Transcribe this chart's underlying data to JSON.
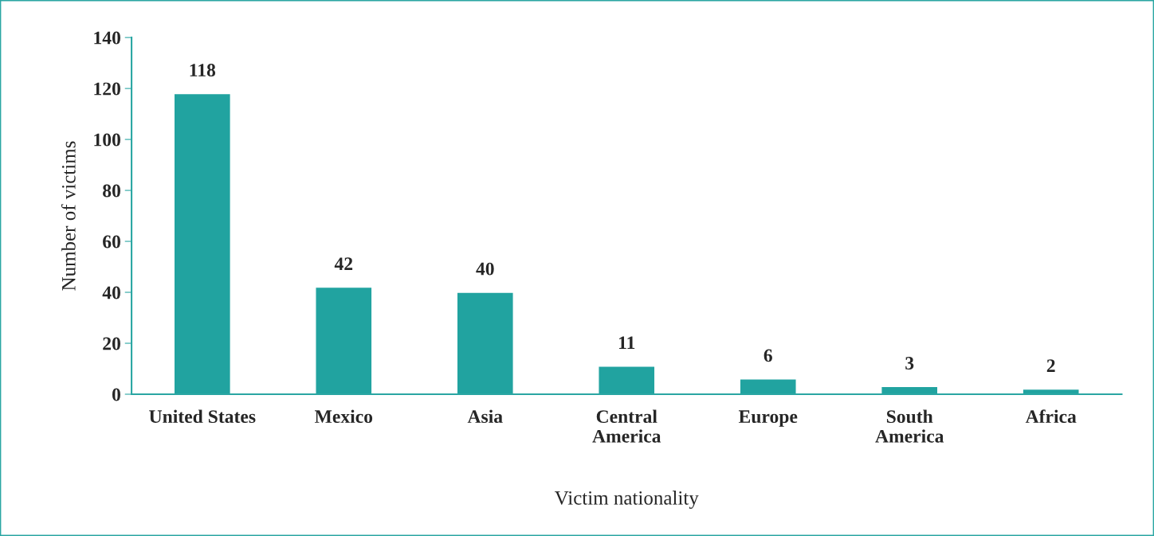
{
  "chart_data": {
    "type": "bar",
    "xlabel": "Victim nationality",
    "ylabel": "Number of victims",
    "categories": [
      "United States",
      "Mexico",
      "Asia",
      "Central\nAmerica",
      "Europe",
      "South\nAmerica",
      "Africa"
    ],
    "values": [
      118,
      42,
      40,
      11,
      6,
      3,
      2
    ],
    "color": "#21a3a0",
    "ylim": [
      0,
      140
    ],
    "yticks": [
      0,
      20,
      40,
      60,
      80,
      100,
      120,
      140
    ],
    "grid": false,
    "data_labels": true
  }
}
